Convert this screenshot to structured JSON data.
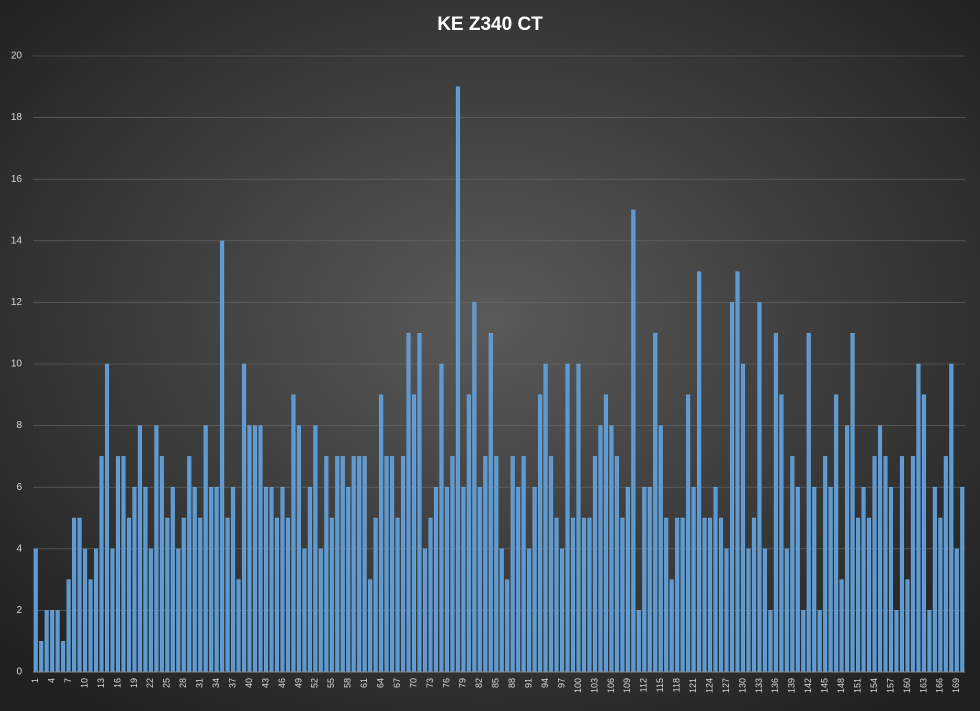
{
  "chart_data": {
    "type": "bar",
    "title": "KE Z340 CT",
    "categories": [
      "1",
      null,
      null,
      "4",
      null,
      null,
      "7",
      null,
      null,
      "10",
      null,
      null,
      "13",
      null,
      null,
      "16",
      null,
      null,
      "19",
      null,
      null,
      "22",
      null,
      null,
      "25",
      null,
      null,
      "28",
      null,
      null,
      "31",
      null,
      null,
      "34",
      null,
      null,
      "37",
      null,
      null,
      "40",
      null,
      null,
      "43",
      null,
      null,
      "46",
      null,
      null,
      "49",
      null,
      null,
      "52",
      null,
      null,
      "55",
      null,
      null,
      "58",
      null,
      null,
      "61",
      null,
      null,
      "64",
      null,
      null,
      "67",
      null,
      null,
      "70",
      null,
      null,
      "73",
      null,
      null,
      "76",
      null,
      null,
      "79",
      null,
      null,
      "82",
      null,
      null,
      "85",
      null,
      null,
      "88",
      null,
      null,
      "91",
      null,
      null,
      "94",
      null,
      null,
      "97",
      null,
      null,
      "100",
      null,
      null,
      "103",
      null,
      null,
      "106",
      null,
      null,
      "109",
      null,
      null,
      "112",
      null,
      null,
      "115",
      null,
      null,
      "118",
      null,
      null,
      "121",
      null,
      null,
      "124",
      null,
      null,
      "127",
      null,
      null,
      "130",
      null,
      null,
      "133",
      null,
      null,
      "136",
      null,
      null,
      "139",
      null,
      null,
      "142",
      null,
      null,
      "145",
      null,
      null,
      "148",
      null,
      null,
      "151",
      null,
      null,
      "154",
      null,
      null,
      "157",
      null,
      null,
      "160",
      null,
      null,
      "163",
      null,
      null,
      "166",
      null,
      null,
      "169",
      null
    ],
    "values": [
      4,
      1,
      2,
      2,
      2,
      1,
      3,
      5,
      5,
      4,
      3,
      4,
      7,
      10,
      4,
      7,
      7,
      5,
      6,
      8,
      6,
      4,
      8,
      7,
      5,
      6,
      4,
      5,
      7,
      6,
      5,
      8,
      6,
      6,
      14,
      5,
      6,
      3,
      10,
      8,
      8,
      8,
      6,
      6,
      5,
      6,
      5,
      9,
      8,
      4,
      6,
      8,
      4,
      7,
      5,
      7,
      7,
      6,
      7,
      7,
      7,
      3,
      5,
      9,
      7,
      7,
      5,
      7,
      11,
      9,
      11,
      4,
      5,
      6,
      10,
      6,
      7,
      19,
      6,
      9,
      12,
      6,
      7,
      11,
      7,
      4,
      3,
      7,
      6,
      7,
      4,
      6,
      9,
      10,
      7,
      5,
      4,
      10,
      5,
      10,
      5,
      5,
      7,
      8,
      9,
      8,
      7,
      5,
      6,
      15,
      2,
      6,
      6,
      11,
      8,
      5,
      3,
      5,
      5,
      9,
      6,
      13,
      5,
      5,
      6,
      5,
      4,
      12,
      13,
      10,
      4,
      5,
      12,
      4,
      2,
      11,
      9,
      4,
      7,
      6,
      2,
      11,
      6,
      2,
      7,
      6,
      9,
      3,
      8,
      11,
      5,
      6,
      5,
      7,
      8,
      7,
      6,
      2,
      7,
      3,
      7,
      10,
      9,
      2,
      6,
      5,
      7,
      10,
      4,
      6
    ],
    "color": "#5b9bd5",
    "ylim": [
      0,
      20
    ],
    "yticks": [
      0,
      2,
      4,
      6,
      8,
      10,
      12,
      14,
      16,
      18,
      20
    ],
    "grid": true
  }
}
